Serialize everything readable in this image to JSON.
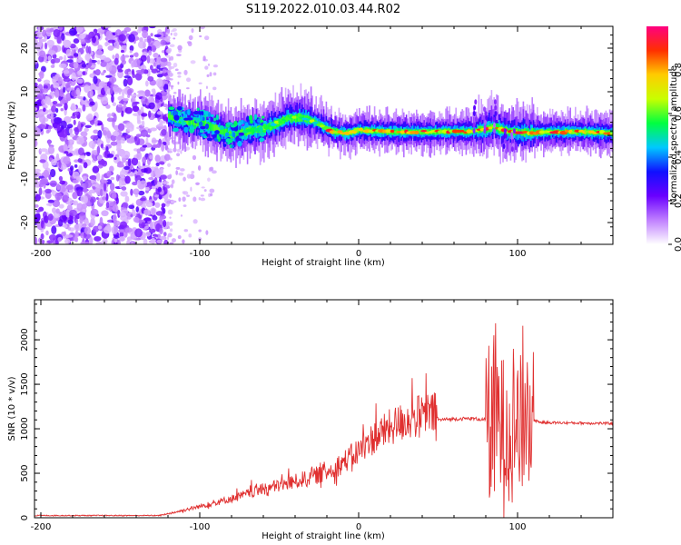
{
  "title": "S119.2022.010.03.44.R02",
  "chart_data": [
    {
      "type": "heatmap",
      "xlabel": "Height of straight line (km)",
      "ylabel": "Frequency (Hz)",
      "xlim": [
        -204,
        160
      ],
      "ylim": [
        -25,
        25
      ],
      "xticks": [
        -200,
        -100,
        0,
        100
      ],
      "yticks": [
        -20,
        -10,
        0,
        10,
        20
      ],
      "colorbar": {
        "label": "Normalized spectral amplitude",
        "range": [
          0,
          1
        ],
        "ticks": [
          0.0,
          0.2,
          0.4,
          0.6,
          0.8
        ],
        "colors": [
          "#ffffff",
          "#c080ff",
          "#6a00ff",
          "#1010ff",
          "#00c8ff",
          "#00ff40",
          "#c8ff00",
          "#ffcc00",
          "#ff3000",
          "#ff0080"
        ]
      },
      "noise_region": [
        -204,
        -120
      ],
      "ridge": {
        "x": [
          -120,
          -110,
          -100,
          -90,
          -80,
          -70,
          -60,
          -50,
          -45,
          -40,
          -35,
          -30,
          -25,
          -20,
          -15,
          -10,
          -5,
          0,
          20,
          40,
          60,
          70,
          75,
          80,
          85,
          90,
          95,
          100,
          110,
          120,
          140,
          160
        ],
        "y": [
          4.5,
          3,
          3,
          1.5,
          0,
          1,
          1.5,
          3,
          4,
          4,
          4,
          3.5,
          2.5,
          1.5,
          0.8,
          0.5,
          0.7,
          1.2,
          0.8,
          0.8,
          0.9,
          0.8,
          1.2,
          1.5,
          2,
          1.2,
          0.8,
          0.8,
          0.6,
          0.8,
          0.8,
          0.5
        ]
      }
    },
    {
      "type": "line",
      "xlabel": "Height of straight line (km)",
      "ylabel": "SNR (10 * v/v)",
      "xlim": [
        -204,
        160
      ],
      "ylim": [
        0,
        2450
      ],
      "xticks": [
        -200,
        -100,
        0,
        100
      ],
      "yticks": [
        0,
        500,
        1000,
        1500,
        2000
      ],
      "color": "#e03030",
      "envelope": {
        "x": [
          -204,
          -125,
          -115,
          -100,
          -80,
          -60,
          -40,
          -20,
          -10,
          0,
          10,
          20,
          30,
          40,
          50,
          60,
          70,
          75,
          80,
          110,
          115,
          160
        ],
        "y": [
          25,
          25,
          60,
          120,
          200,
          300,
          380,
          480,
          580,
          700,
          850,
          950,
          1030,
          1080,
          1100,
          1110,
          1115,
          1110,
          1100,
          1100,
          1070,
          1060
        ]
      }
    }
  ]
}
